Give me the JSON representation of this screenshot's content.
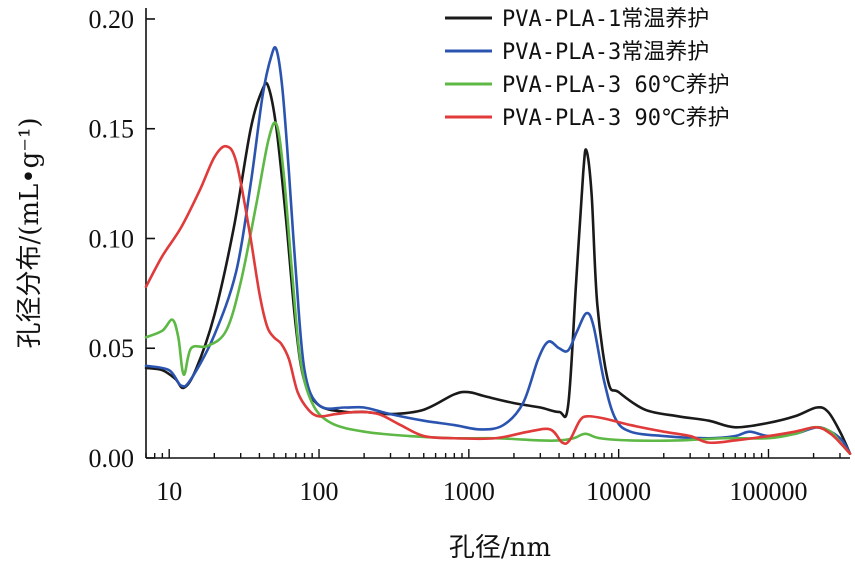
{
  "chart_data": {
    "type": "line",
    "xlabel": "孔径/nm",
    "ylabel": "孔径分布/(mL•g⁻¹)",
    "x_scale": "log",
    "xlim": [
      7,
      350000
    ],
    "ylim": [
      0,
      0.205
    ],
    "xticks": [
      10,
      100,
      1000,
      10000,
      100000
    ],
    "xtick_labels": [
      "10",
      "100",
      "1000",
      "10000",
      "100000"
    ],
    "yticks": [
      0,
      0.05,
      0.1,
      0.15,
      0.2
    ],
    "ytick_labels": [
      "0.00",
      "0.05",
      "0.10",
      "0.15",
      "0.20"
    ],
    "grid": false,
    "legend_position": "top-right",
    "series": [
      {
        "name": "PVA-PLA-1常温养护",
        "color": "#1a1a1a",
        "points": [
          [
            7,
            0.041
          ],
          [
            9,
            0.04
          ],
          [
            11,
            0.036
          ],
          [
            12.5,
            0.032
          ],
          [
            15,
            0.04
          ],
          [
            20,
            0.065
          ],
          [
            27,
            0.105
          ],
          [
            35,
            0.15
          ],
          [
            42,
            0.168
          ],
          [
            46,
            0.169
          ],
          [
            52,
            0.15
          ],
          [
            60,
            0.11
          ],
          [
            70,
            0.06
          ],
          [
            80,
            0.035
          ],
          [
            100,
            0.024
          ],
          [
            150,
            0.021
          ],
          [
            200,
            0.021
          ],
          [
            300,
            0.02
          ],
          [
            500,
            0.022
          ],
          [
            800,
            0.029
          ],
          [
            1000,
            0.03
          ],
          [
            1300,
            0.028
          ],
          [
            2000,
            0.025
          ],
          [
            3000,
            0.023
          ],
          [
            4000,
            0.021
          ],
          [
            4600,
            0.024
          ],
          [
            5200,
            0.08
          ],
          [
            5800,
            0.13
          ],
          [
            6100,
            0.14
          ],
          [
            6600,
            0.12
          ],
          [
            7200,
            0.07
          ],
          [
            8500,
            0.035
          ],
          [
            10000,
            0.03
          ],
          [
            15000,
            0.022
          ],
          [
            25000,
            0.019
          ],
          [
            40000,
            0.017
          ],
          [
            60000,
            0.014
          ],
          [
            100000,
            0.016
          ],
          [
            150000,
            0.019
          ],
          [
            210000,
            0.023
          ],
          [
            250000,
            0.021
          ],
          [
            300000,
            0.012
          ],
          [
            350000,
            0.002
          ]
        ]
      },
      {
        "name": "PVA-PLA-3常温养护",
        "color": "#2b54b0",
        "points": [
          [
            7,
            0.042
          ],
          [
            10,
            0.04
          ],
          [
            12,
            0.033
          ],
          [
            14,
            0.036
          ],
          [
            20,
            0.056
          ],
          [
            28,
            0.085
          ],
          [
            35,
            0.125
          ],
          [
            42,
            0.165
          ],
          [
            48,
            0.183
          ],
          [
            52,
            0.186
          ],
          [
            57,
            0.168
          ],
          [
            63,
            0.13
          ],
          [
            70,
            0.085
          ],
          [
            80,
            0.04
          ],
          [
            100,
            0.024
          ],
          [
            150,
            0.023
          ],
          [
            200,
            0.023
          ],
          [
            300,
            0.02
          ],
          [
            500,
            0.017
          ],
          [
            800,
            0.015
          ],
          [
            1200,
            0.013
          ],
          [
            1700,
            0.015
          ],
          [
            2300,
            0.025
          ],
          [
            2900,
            0.045
          ],
          [
            3400,
            0.053
          ],
          [
            4000,
            0.05
          ],
          [
            4600,
            0.049
          ],
          [
            5300,
            0.058
          ],
          [
            6100,
            0.066
          ],
          [
            6800,
            0.06
          ],
          [
            8000,
            0.035
          ],
          [
            9500,
            0.018
          ],
          [
            12000,
            0.012
          ],
          [
            20000,
            0.01
          ],
          [
            40000,
            0.009
          ],
          [
            60000,
            0.01
          ],
          [
            75000,
            0.012
          ],
          [
            100000,
            0.01
          ],
          [
            150000,
            0.011
          ],
          [
            210000,
            0.014
          ],
          [
            260000,
            0.012
          ],
          [
            310000,
            0.008
          ],
          [
            350000,
            0.002
          ]
        ]
      },
      {
        "name": "PVA-PLA-3 60℃养护",
        "color": "#5db845",
        "points": [
          [
            7,
            0.055
          ],
          [
            9,
            0.058
          ],
          [
            10.5,
            0.063
          ],
          [
            11.5,
            0.055
          ],
          [
            12.5,
            0.038
          ],
          [
            14,
            0.05
          ],
          [
            18,
            0.051
          ],
          [
            24,
            0.058
          ],
          [
            30,
            0.08
          ],
          [
            38,
            0.115
          ],
          [
            46,
            0.145
          ],
          [
            52,
            0.152
          ],
          [
            58,
            0.13
          ],
          [
            66,
            0.085
          ],
          [
            75,
            0.045
          ],
          [
            90,
            0.025
          ],
          [
            120,
            0.016
          ],
          [
            200,
            0.012
          ],
          [
            400,
            0.01
          ],
          [
            800,
            0.009
          ],
          [
            1500,
            0.009
          ],
          [
            3000,
            0.008
          ],
          [
            4000,
            0.008
          ],
          [
            5000,
            0.009
          ],
          [
            6000,
            0.011
          ],
          [
            7500,
            0.009
          ],
          [
            12000,
            0.008
          ],
          [
            25000,
            0.008
          ],
          [
            50000,
            0.009
          ],
          [
            100000,
            0.009
          ],
          [
            150000,
            0.011
          ],
          [
            200000,
            0.014
          ],
          [
            260000,
            0.012
          ],
          [
            310000,
            0.006
          ],
          [
            350000,
            0.002
          ]
        ]
      },
      {
        "name": "PVA-PLA-3 90℃养护",
        "color": "#e03a3a",
        "points": [
          [
            7,
            0.078
          ],
          [
            9,
            0.092
          ],
          [
            12,
            0.105
          ],
          [
            16,
            0.122
          ],
          [
            20,
            0.137
          ],
          [
            24,
            0.142
          ],
          [
            28,
            0.135
          ],
          [
            34,
            0.105
          ],
          [
            40,
            0.075
          ],
          [
            45,
            0.06
          ],
          [
            50,
            0.055
          ],
          [
            56,
            0.052
          ],
          [
            63,
            0.045
          ],
          [
            72,
            0.03
          ],
          [
            85,
            0.022
          ],
          [
            100,
            0.019
          ],
          [
            130,
            0.02
          ],
          [
            180,
            0.021
          ],
          [
            250,
            0.02
          ],
          [
            350,
            0.015
          ],
          [
            500,
            0.01
          ],
          [
            800,
            0.009
          ],
          [
            1500,
            0.009
          ],
          [
            2500,
            0.012
          ],
          [
            3500,
            0.013
          ],
          [
            4200,
            0.007
          ],
          [
            4700,
            0.008
          ],
          [
            5500,
            0.017
          ],
          [
            6200,
            0.019
          ],
          [
            8000,
            0.018
          ],
          [
            12000,
            0.015
          ],
          [
            20000,
            0.012
          ],
          [
            30000,
            0.01
          ],
          [
            40000,
            0.007
          ],
          [
            60000,
            0.008
          ],
          [
            100000,
            0.01
          ],
          [
            150000,
            0.012
          ],
          [
            210000,
            0.014
          ],
          [
            260000,
            0.011
          ],
          [
            310000,
            0.006
          ],
          [
            350000,
            0.002
          ]
        ]
      }
    ]
  }
}
